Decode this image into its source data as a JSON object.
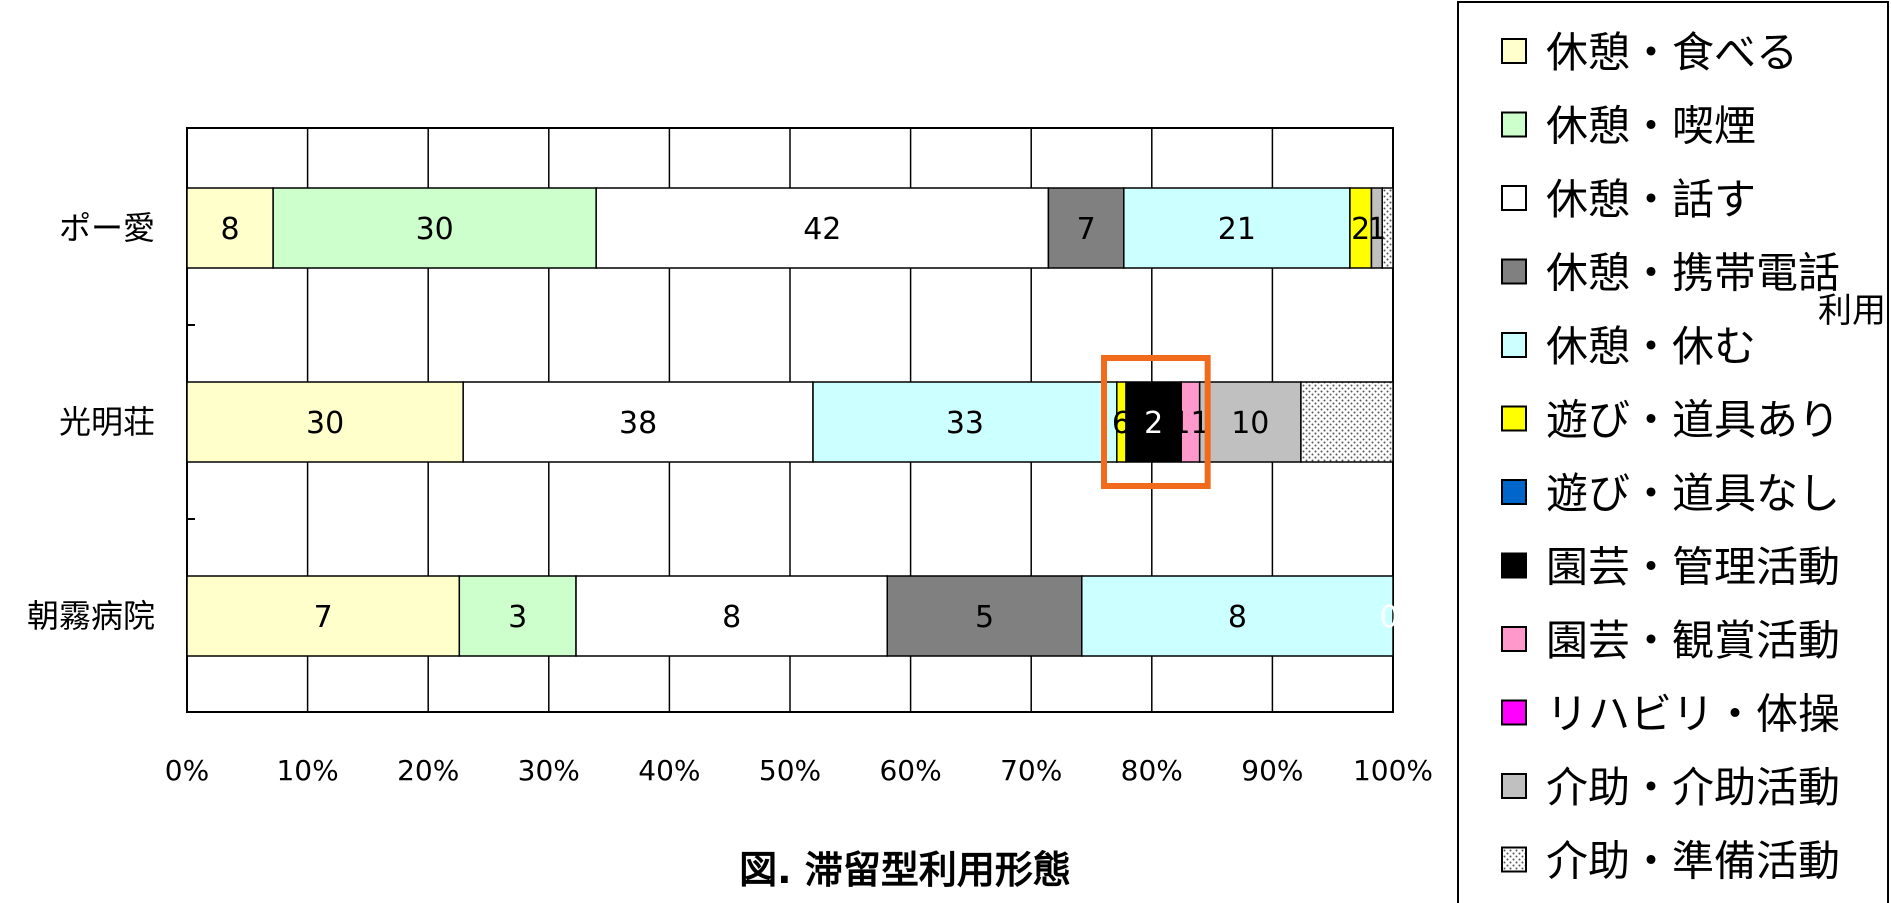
{
  "chart_data": {
    "type": "bar",
    "orientation": "horizontal",
    "stacked": "percent",
    "title": "図. 滞留型利用形態",
    "xlabel": "",
    "ylabel": "",
    "xlim": [
      0,
      100
    ],
    "x_ticks": [
      "0%",
      "10%",
      "20%",
      "30%",
      "40%",
      "50%",
      "60%",
      "70%",
      "80%",
      "90%",
      "100%"
    ],
    "grid": true,
    "legend_position": "right",
    "categories": [
      "ポー愛",
      "光明荘",
      "朝霧病院"
    ],
    "series": [
      {
        "name": "休憩・食べる",
        "color": "#ffffcc",
        "values": [
          8,
          30,
          7
        ]
      },
      {
        "name": "休憩・喫煙",
        "color": "#ccffcc",
        "values": [
          30,
          0,
          3
        ]
      },
      {
        "name": "休憩・話す",
        "color": "#ffffff",
        "values": [
          42,
          38,
          8
        ]
      },
      {
        "name": "休憩・携帯電話",
        "color": "#808080",
        "values": [
          7,
          0,
          5
        ]
      },
      {
        "name": "休憩・休む",
        "color": "#ccffff",
        "values": [
          21,
          33,
          8
        ]
      },
      {
        "name": "遊び・道具あり",
        "color": "#ffff00",
        "values": [
          2,
          1,
          0
        ]
      },
      {
        "name": "遊び・道具なし",
        "color": "#0066cc",
        "values": [
          0,
          0,
          0
        ]
      },
      {
        "name": "園芸・管理活動",
        "color": "#000000",
        "values": [
          0,
          6,
          0
        ]
      },
      {
        "name": "園芸・観賞活動",
        "color": "#ff99cc",
        "values": [
          0,
          2,
          0
        ]
      },
      {
        "name": "リハビリ・体操",
        "color": "#ff00ff",
        "values": [
          0,
          0,
          0
        ]
      },
      {
        "name": "介助・介助活動",
        "color": "#c0c0c0",
        "values": [
          1,
          11,
          0
        ]
      },
      {
        "name": "介助・準備活動",
        "color": "#dddddd",
        "pattern": "dots",
        "values": [
          1,
          10,
          0
        ]
      }
    ],
    "data_labels": [
      [
        "8",
        "30",
        "42",
        "7",
        "21",
        "2",
        "1"
      ],
      [
        "30",
        "38",
        "33",
        "6",
        "2",
        "11",
        "10"
      ],
      [
        "7",
        "3",
        "8",
        "5",
        "8",
        "0"
      ]
    ],
    "legend_extra_text": "利用",
    "highlight": {
      "category": "光明荘",
      "series": [
        "園芸・管理活動",
        "園芸・観賞活動"
      ],
      "color": "#f26b1d"
    }
  }
}
